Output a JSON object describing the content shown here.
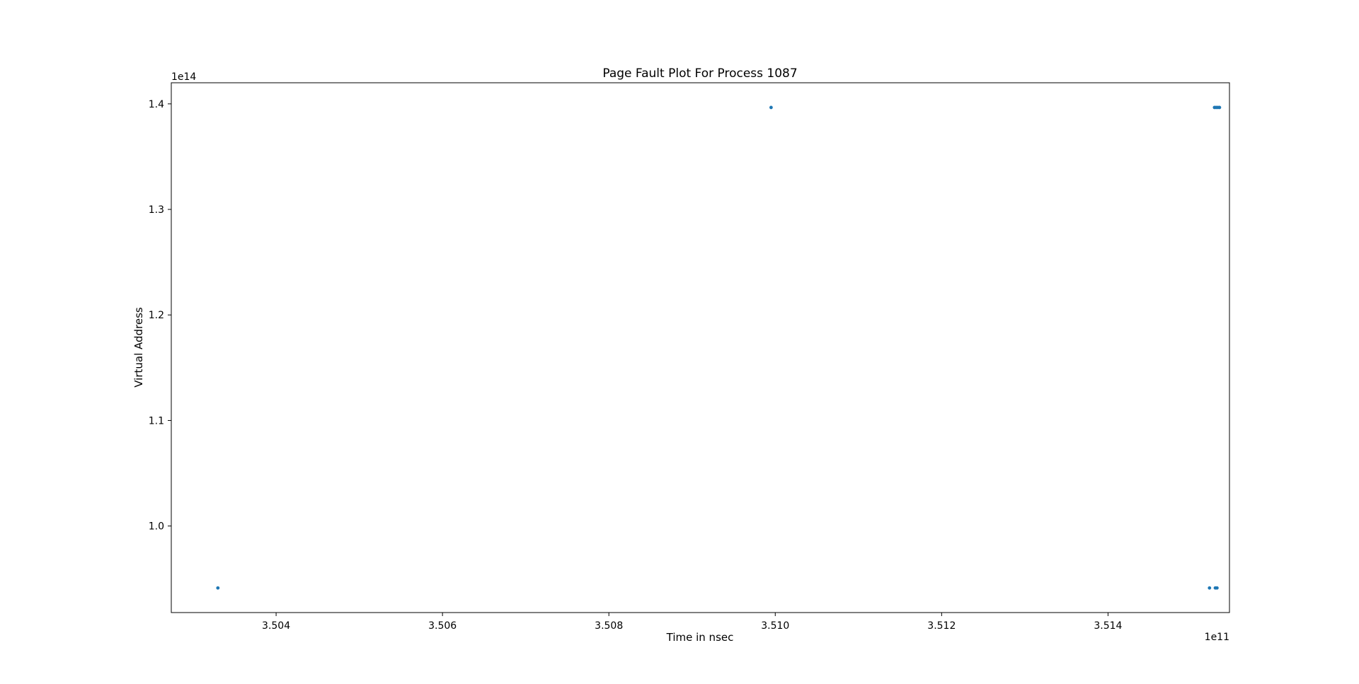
{
  "chart_data": {
    "type": "scatter",
    "title": "Page Fault Plot For Process 1087",
    "xlabel": "Time in nsec",
    "ylabel": "Virtual Address",
    "x_offset_label": "1e11",
    "y_offset_label": "1e14",
    "x_ticks": [
      3.504,
      3.506,
      3.508,
      3.51,
      3.512,
      3.514
    ],
    "x_tick_labels": [
      "3.504",
      "3.506",
      "3.508",
      "3.510",
      "3.512",
      "3.514"
    ],
    "y_ticks": [
      1.0,
      1.1,
      1.2,
      1.3,
      1.4
    ],
    "y_tick_labels": [
      "1.0",
      "1.1",
      "1.2",
      "1.3",
      "1.4"
    ],
    "xlim": [
      3.50274,
      3.51546
    ],
    "ylim": [
      0.918,
      1.42
    ],
    "grid": false,
    "color": "#1f77b4",
    "points": [
      {
        "x": 3.5033,
        "y": 0.9413
      },
      {
        "x": 3.50995,
        "y": 1.3966
      },
      {
        "x": 3.51522,
        "y": 0.9413
      },
      {
        "x": 3.51529,
        "y": 0.9413
      },
      {
        "x": 3.51531,
        "y": 0.9413
      },
      {
        "x": 3.51528,
        "y": 1.3966
      },
      {
        "x": 3.5153,
        "y": 1.3966
      },
      {
        "x": 3.51532,
        "y": 1.3966
      },
      {
        "x": 3.51534,
        "y": 1.3966
      }
    ]
  }
}
